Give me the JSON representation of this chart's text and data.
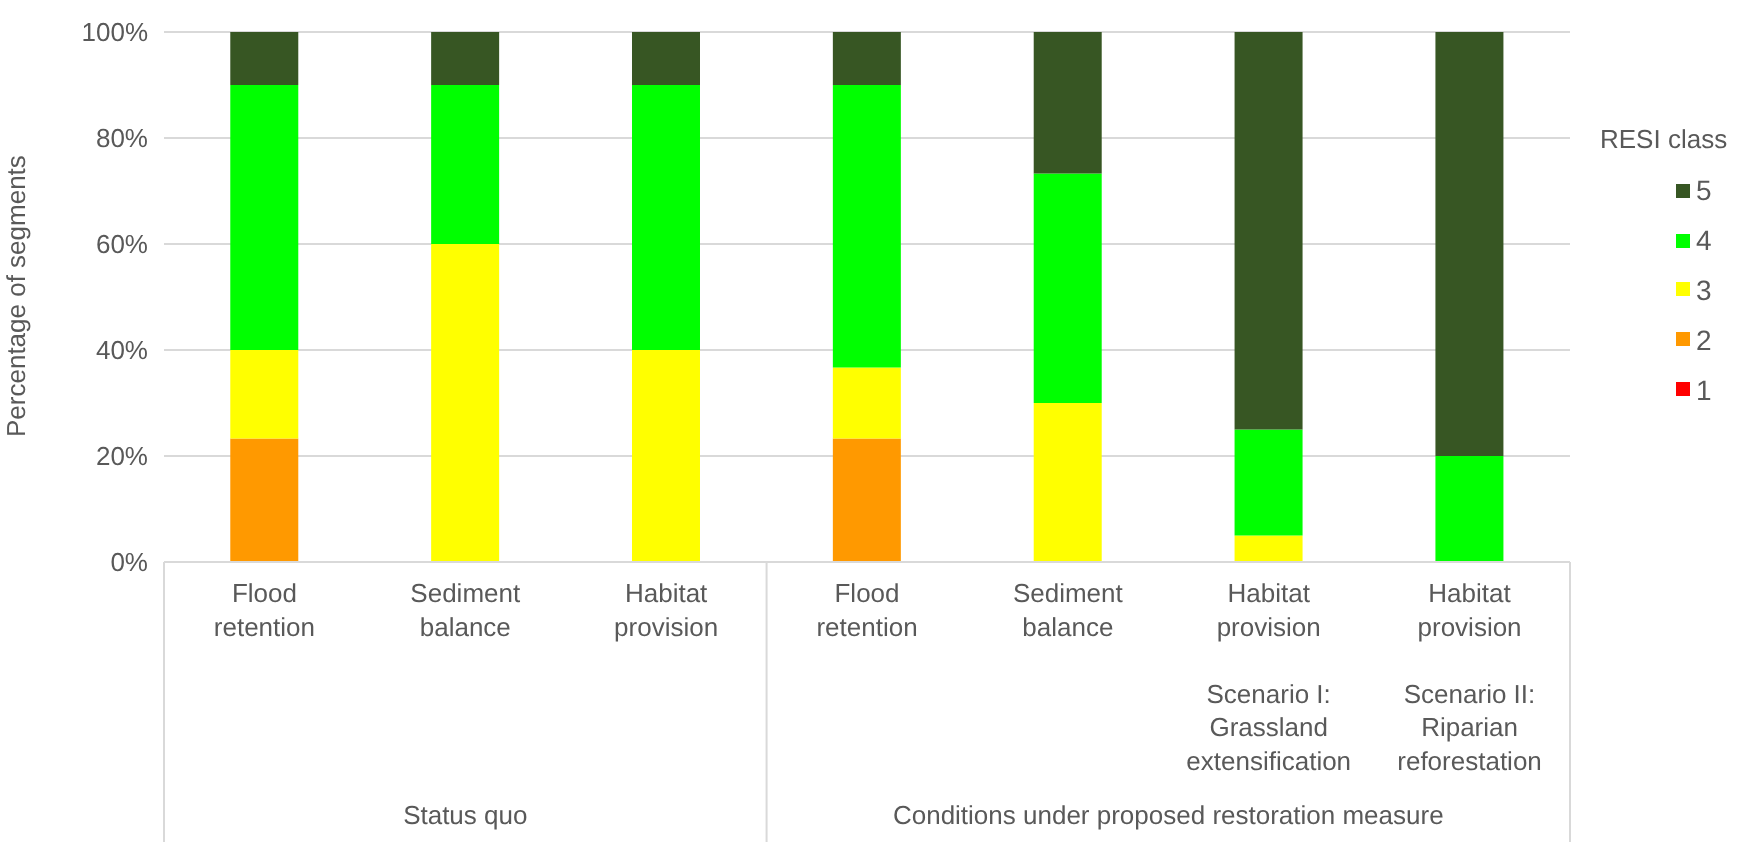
{
  "chart_data": {
    "type": "bar",
    "stacked": true,
    "ylabel": "Percentage of segments",
    "legend_title": "RESI class",
    "categories": [
      "Flood\nretention",
      "Sediment\nbalance",
      "Habitat\nprovision",
      "Flood\nretention",
      "Sediment\nbalance",
      "Habitat\nprovision\n\nScenario I:\nGrassland\nextensification",
      "Habitat\nprovision\n\nScenario II:\nRiparian\nreforestation"
    ],
    "series": [
      {
        "name": "1",
        "color": "#ff0000",
        "values": [
          0,
          0,
          0,
          0,
          0,
          0,
          0
        ]
      },
      {
        "name": "2",
        "color": "#ff9900",
        "values": [
          23.3,
          0,
          0,
          23.3,
          0,
          0,
          0
        ]
      },
      {
        "name": "3",
        "color": "#ffff00",
        "values": [
          16.7,
          60,
          40,
          13.4,
          30,
          5,
          0
        ]
      },
      {
        "name": "4",
        "color": "#00ff00",
        "values": [
          50,
          30,
          50,
          53.3,
          43.3,
          20,
          20
        ]
      },
      {
        "name": "5",
        "color": "#375623",
        "values": [
          10,
          10,
          10,
          10,
          26.7,
          75,
          80
        ]
      }
    ],
    "ylim": [
      0,
      100
    ],
    "yticks": [
      {
        "value": 0,
        "label": "0%"
      },
      {
        "value": 20,
        "label": "20%"
      },
      {
        "value": 40,
        "label": "40%"
      },
      {
        "value": 60,
        "label": "60%"
      },
      {
        "value": 80,
        "label": "80%"
      },
      {
        "value": 100,
        "label": "100%"
      }
    ],
    "grid": "y",
    "legend": "right",
    "annotations": [
      "Status quo",
      "Conditions under proposed restoration measure"
    ]
  }
}
